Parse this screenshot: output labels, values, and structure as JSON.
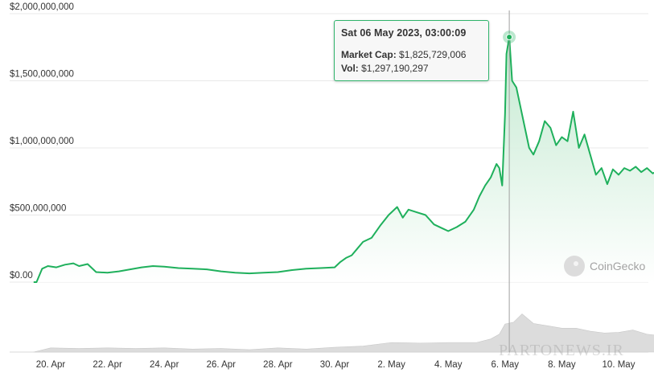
{
  "chart_data": {
    "type": "area",
    "y_axis": {
      "ticks": [
        "$0.00",
        "$500,000,000",
        "$1,000,000,000",
        "$1,500,000,000",
        "$2,000,000,000"
      ],
      "tick_values": [
        0,
        500000000,
        1000000000,
        1500000000,
        2000000000
      ],
      "ylim": [
        0,
        2000000000
      ]
    },
    "x_axis": {
      "ticks": [
        "20. Apr",
        "22. Apr",
        "24. Apr",
        "26. Apr",
        "28. Apr",
        "30. Apr",
        "2. May",
        "4. May",
        "6. May",
        "8. May",
        "10. May"
      ],
      "tick_positions_days": [
        0,
        2,
        4,
        6,
        8,
        10,
        12,
        14,
        16,
        18,
        20
      ]
    },
    "series": [
      {
        "name": "Market Cap",
        "x_days": [
          -0.6,
          -0.5,
          -0.3,
          -0.1,
          0.2,
          0.5,
          0.8,
          1.0,
          1.3,
          1.6,
          2.0,
          2.4,
          2.8,
          3.2,
          3.6,
          4.0,
          4.5,
          5.0,
          5.5,
          6.0,
          6.5,
          7.0,
          7.5,
          8.0,
          8.5,
          9.0,
          9.5,
          10.0,
          10.2,
          10.4,
          10.6,
          10.8,
          11.0,
          11.3,
          11.6,
          11.9,
          12.2,
          12.4,
          12.6,
          12.9,
          13.2,
          13.5,
          13.8,
          14.0,
          14.3,
          14.6,
          14.9,
          15.1,
          15.3,
          15.5,
          15.7,
          15.8,
          15.9,
          16.0,
          16.05,
          16.15,
          16.25,
          16.4,
          16.55,
          16.7,
          16.85,
          17.0,
          17.2,
          17.4,
          17.6,
          17.8,
          18.0,
          18.2,
          18.4,
          18.6,
          18.8,
          19.0,
          19.2,
          19.4,
          19.6,
          19.8,
          20.0,
          20.2,
          20.4,
          20.6,
          20.8,
          21.0,
          21.2,
          21.4,
          21.6,
          21.9
        ],
        "values": [
          0,
          0,
          100000000,
          120000000,
          110000000,
          130000000,
          140000000,
          120000000,
          135000000,
          75000000,
          70000000,
          80000000,
          95000000,
          110000000,
          120000000,
          115000000,
          105000000,
          100000000,
          95000000,
          80000000,
          70000000,
          65000000,
          70000000,
          75000000,
          90000000,
          100000000,
          105000000,
          110000000,
          150000000,
          180000000,
          200000000,
          250000000,
          300000000,
          330000000,
          420000000,
          500000000,
          560000000,
          480000000,
          540000000,
          520000000,
          500000000,
          430000000,
          400000000,
          380000000,
          410000000,
          450000000,
          540000000,
          640000000,
          720000000,
          780000000,
          880000000,
          850000000,
          720000000,
          1250000000,
          1700000000,
          1825729006,
          1500000000,
          1450000000,
          1300000000,
          1150000000,
          1000000000,
          950000000,
          1050000000,
          1200000000,
          1150000000,
          1020000000,
          1080000000,
          1050000000,
          1270000000,
          1000000000,
          1100000000,
          950000000,
          800000000,
          850000000,
          730000000,
          840000000,
          800000000,
          850000000,
          830000000,
          860000000,
          820000000,
          850000000,
          810000000,
          830000000,
          780000000,
          790000000
        ]
      },
      {
        "name": "Vol",
        "x_days": [
          -0.6,
          0,
          1,
          2,
          3,
          4,
          5,
          6,
          7,
          8,
          9,
          10,
          11,
          12,
          13,
          14,
          15,
          15.5,
          15.8,
          16.0,
          16.3,
          16.6,
          17.0,
          17.5,
          18.0,
          18.5,
          19.0,
          19.5,
          20.0,
          20.5,
          21.0,
          21.5,
          21.9
        ],
        "values": [
          0,
          0.05,
          0.06,
          0.05,
          0.06,
          0.05,
          0.05,
          0.04,
          0.04,
          0.05,
          0.05,
          0.06,
          0.1,
          0.14,
          0.15,
          0.14,
          0.16,
          0.2,
          0.3,
          0.45,
          0.5,
          0.62,
          0.48,
          0.42,
          0.4,
          0.38,
          0.35,
          0.3,
          0.33,
          0.35,
          0.3,
          0.25,
          0.22
        ]
      }
    ],
    "highlight": {
      "x_days": 16.15,
      "date": "Sat 06 May 2023, 03:00:09",
      "market_cap_label": "Market Cap:",
      "market_cap_value": "$1,825,729,006",
      "vol_label": "Vol:",
      "vol_value": "$1,297,190,297"
    },
    "colors": {
      "line": "#1fb05c",
      "area_top": "#bfe8cd",
      "area_bottom": "#ffffff",
      "volume": "#dcdcdc",
      "grid": "#e8e8e8",
      "crosshair": "#a0a0a0"
    },
    "grid": true,
    "legend": "none"
  },
  "watermark": {
    "brand": "CoinGecko",
    "overlay": "PARTONEWS.IR"
  }
}
